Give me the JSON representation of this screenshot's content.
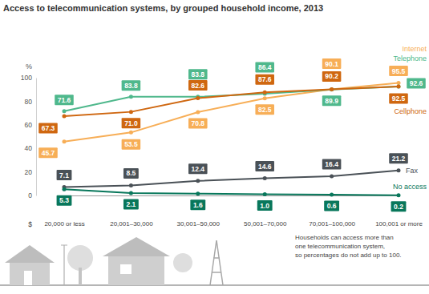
{
  "chart_data": {
    "type": "line",
    "title": "Access to telecommunication systems, by grouped household income, 2013",
    "xlabel": "$",
    "ylabel": "%",
    "categories": [
      "20,000 or less",
      "20,001–30,000",
      "30,001–50,000",
      "50,001–70,000",
      "70,001–100,000",
      "100,001 or more"
    ],
    "ylim": [
      0,
      100
    ],
    "yticks": [
      0,
      20,
      40,
      60,
      80,
      100
    ],
    "grid": false,
    "data_labels": true,
    "marker": "circle",
    "series": [
      {
        "name": "Internet",
        "color": "#f7ae57",
        "values": [
          45.7,
          53.5,
          70.8,
          82.5,
          90.1,
          95.5
        ],
        "value_labels": [
          "45.7",
          "53.5",
          "70.8",
          "82.5",
          "90.1",
          "95.5"
        ]
      },
      {
        "name": "Telephone",
        "color": "#4fb88c",
        "values": [
          71.6,
          83.8,
          83.8,
          86.4,
          89.9,
          92.6
        ],
        "value_labels": [
          "71.6",
          "83.8",
          "83.8",
          "86.4",
          "89.9",
          "92.6"
        ]
      },
      {
        "name": "Cellphone",
        "color": "#cf6710",
        "values": [
          67.3,
          71.0,
          82.6,
          87.6,
          90.2,
          92.5
        ],
        "value_labels": [
          "67.3",
          "71.0",
          "82.6",
          "87.6",
          "90.2",
          "92.5"
        ]
      },
      {
        "name": "Fax",
        "color": "#4a5157",
        "values": [
          7.1,
          8.5,
          12.4,
          14.6,
          16.4,
          21.2
        ],
        "value_labels": [
          "7.1",
          "8.5",
          "12.4",
          "14.6",
          "16.4",
          "21.2"
        ]
      },
      {
        "name": "No access",
        "color": "#08775b",
        "values": [
          5.3,
          2.1,
          1.6,
          1.0,
          0.6,
          0.2
        ],
        "value_labels": [
          "5.3",
          "2.1",
          "1.6",
          "1.0",
          "0.6",
          "0.2"
        ]
      }
    ],
    "annotations": [
      "Households can access more than",
      "one telecommunication system,",
      "so percentages do not add up to 100."
    ]
  }
}
